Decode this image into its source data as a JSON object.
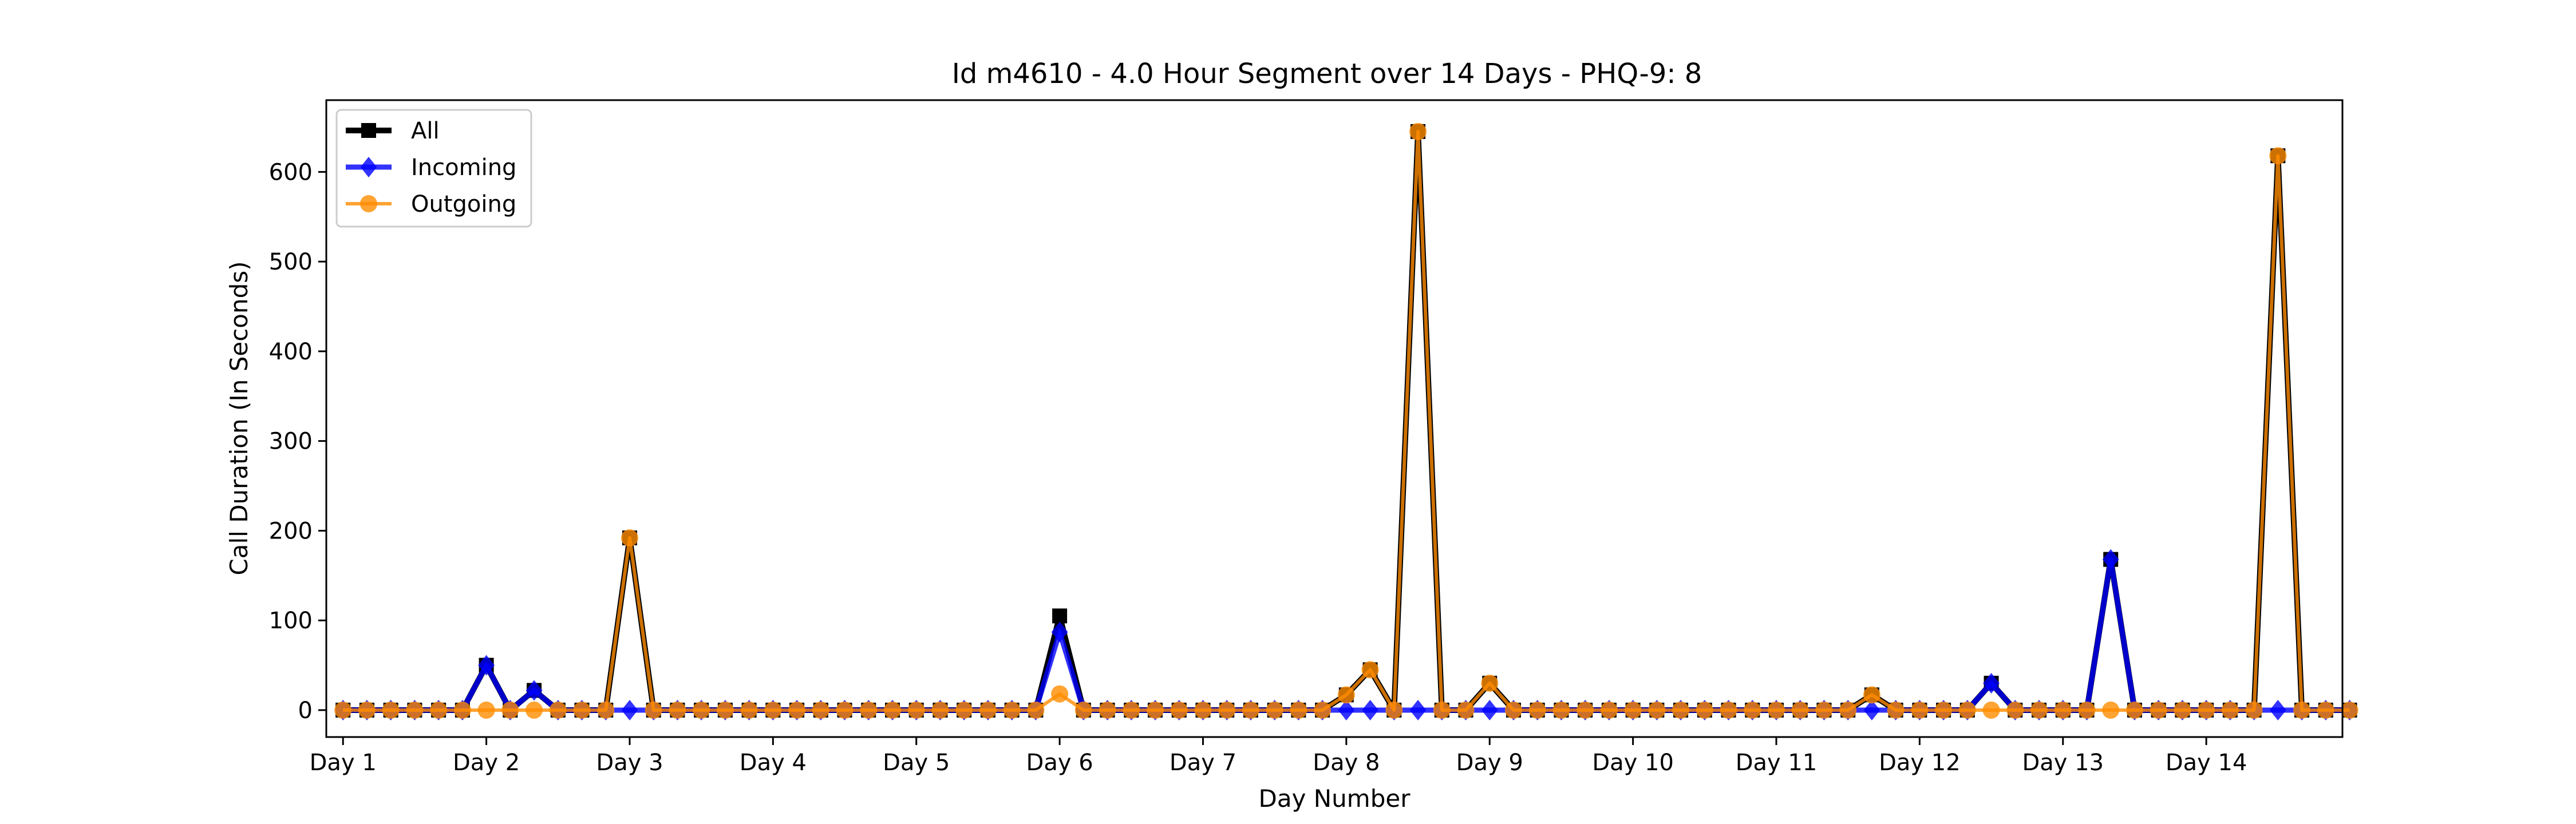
{
  "chart_data": {
    "type": "line",
    "title": "Id m4610 - 4.0 Hour Segment over 14 Days - PHQ-9: 8",
    "xlabel": "Day Number",
    "ylabel": "Call Duration (In Seconds)",
    "ylim": [
      -30,
      680
    ],
    "yticks": [
      0,
      100,
      200,
      300,
      400,
      500,
      600
    ],
    "xlim": [
      -0.7,
      83.7
    ],
    "xtick_positions": [
      0,
      6,
      12,
      18,
      24,
      30,
      36,
      42,
      48,
      54,
      60,
      66,
      72,
      78
    ],
    "xtick_labels": [
      "Day 1",
      "Day 2",
      "Day 3",
      "Day 4",
      "Day 5",
      "Day 6",
      "Day 7",
      "Day 8",
      "Day 9",
      "Day 10",
      "Day 11",
      "Day 12",
      "Day 13",
      "Day 14"
    ],
    "grid": false,
    "legend_position": "top-left",
    "series": [
      {
        "name": "All",
        "color": "#000000",
        "marker": "square",
        "values": [
          0,
          0,
          0,
          0,
          0,
          0,
          50,
          0,
          22,
          0,
          0,
          0,
          192,
          0,
          0,
          0,
          0,
          0,
          0,
          0,
          0,
          0,
          0,
          0,
          0,
          0,
          0,
          0,
          0,
          0,
          105,
          0,
          0,
          0,
          0,
          0,
          0,
          0,
          0,
          0,
          0,
          0,
          17,
          45,
          0,
          645,
          0,
          0,
          30,
          0,
          0,
          0,
          0,
          0,
          0,
          0,
          0,
          0,
          0,
          0,
          0,
          0,
          0,
          0,
          17,
          0,
          0,
          0,
          0,
          30,
          0,
          0,
          0,
          0,
          168,
          0,
          0,
          0,
          0,
          0,
          0,
          618,
          0,
          0,
          0
        ]
      },
      {
        "name": "Incoming",
        "color": "#0000ff",
        "marker": "diamond",
        "values": [
          0,
          0,
          0,
          0,
          0,
          0,
          50,
          0,
          22,
          0,
          0,
          0,
          0,
          0,
          0,
          0,
          0,
          0,
          0,
          0,
          0,
          0,
          0,
          0,
          0,
          0,
          0,
          0,
          0,
          0,
          87,
          0,
          0,
          0,
          0,
          0,
          0,
          0,
          0,
          0,
          0,
          0,
          0,
          0,
          0,
          0,
          0,
          0,
          0,
          0,
          0,
          0,
          0,
          0,
          0,
          0,
          0,
          0,
          0,
          0,
          0,
          0,
          0,
          0,
          0,
          0,
          0,
          0,
          0,
          30,
          0,
          0,
          0,
          0,
          168,
          0,
          0,
          0,
          0,
          0,
          0,
          0,
          0,
          0,
          0
        ]
      },
      {
        "name": "Outgoing",
        "color": "#ff8c00",
        "marker": "circle",
        "values": [
          0,
          0,
          0,
          0,
          0,
          0,
          0,
          0,
          0,
          0,
          0,
          0,
          192,
          0,
          0,
          0,
          0,
          0,
          0,
          0,
          0,
          0,
          0,
          0,
          0,
          0,
          0,
          0,
          0,
          0,
          18,
          0,
          0,
          0,
          0,
          0,
          0,
          0,
          0,
          0,
          0,
          0,
          17,
          45,
          0,
          645,
          0,
          0,
          30,
          0,
          0,
          0,
          0,
          0,
          0,
          0,
          0,
          0,
          0,
          0,
          0,
          0,
          0,
          0,
          17,
          0,
          0,
          0,
          0,
          0,
          0,
          0,
          0,
          0,
          0,
          0,
          0,
          0,
          0,
          0,
          0,
          618,
          0,
          0,
          0
        ]
      }
    ]
  }
}
